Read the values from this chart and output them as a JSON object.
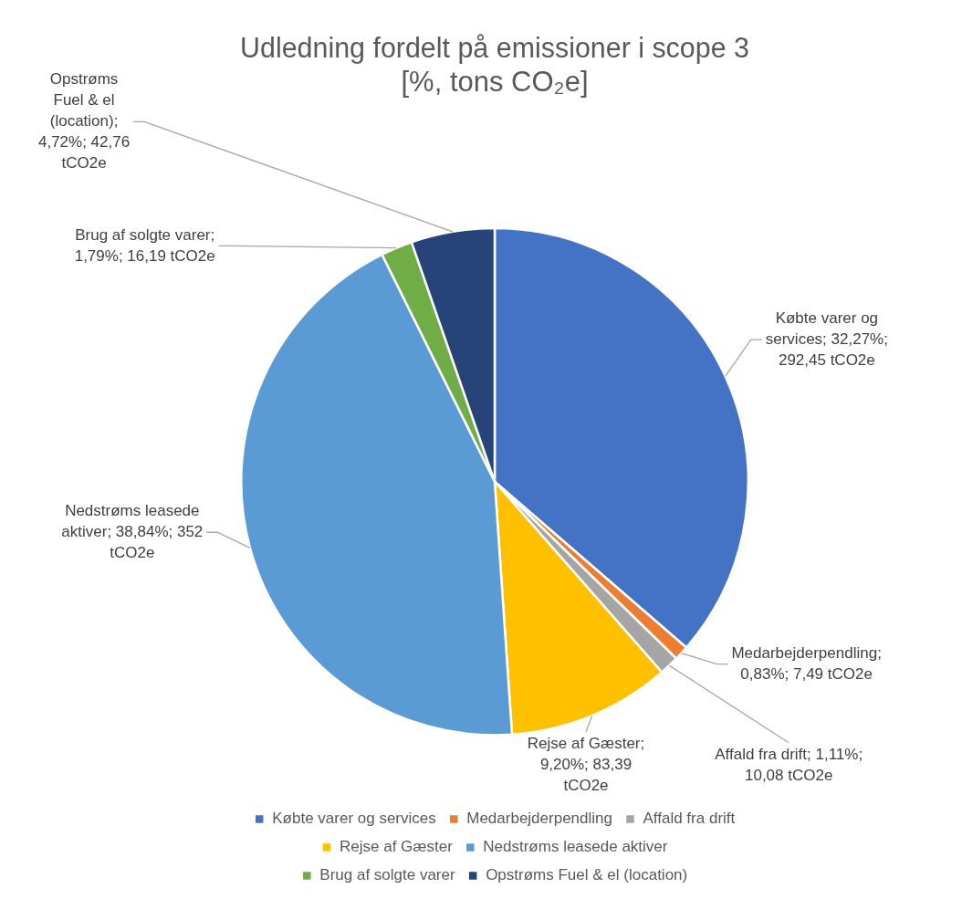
{
  "chart_data": {
    "type": "pie",
    "title": "Udledning fordelt på emissioner i scope 3 [%, tons CO₂e]",
    "categories": [
      "Købte varer og services",
      "Medarbejderpendling",
      "Affald fra drift",
      "Rejse af Gæster",
      "Nedstrøms leasede aktiver",
      "Brug af solgte varer",
      "Opstrøms Fuel & el (location)"
    ],
    "values": [
      292.45,
      7.49,
      10.08,
      83.39,
      352,
      16.19,
      42.76
    ],
    "colors": [
      "#4472c4",
      "#ed7d31",
      "#a5a5a5",
      "#ffc000",
      "#5b9bd5",
      "#70ad47",
      "#264478"
    ],
    "value_labels": [
      "Købte varer og services; 32,27%; 292,45 tCO2e",
      "Medarbejderpendling; 0,83%; 7,49 tCO2e",
      "Affald fra drift; 1,11%; 10,08 tCO2e",
      "Rejse af Gæster; 9,20%; 83,39 tCO2e",
      "Nedstrøms leasede aktiver; 38,84%; 352 tCO2e",
      "Brug af solgte varer; 1,79%; 16,19 tCO2e",
      "Opstrøms Fuel & el (location); 4,72%; 42,76 tCO2e"
    ],
    "legend": "bottom"
  }
}
